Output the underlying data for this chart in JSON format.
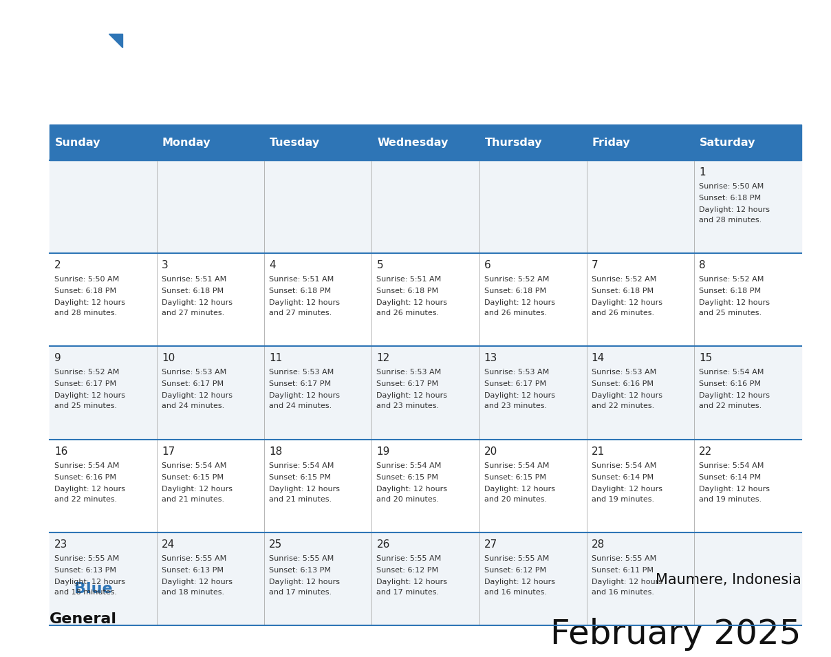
{
  "title": "February 2025",
  "subtitle": "Maumere, Indonesia",
  "header_color": "#2E75B6",
  "header_text_color": "#FFFFFF",
  "day_names": [
    "Sunday",
    "Monday",
    "Tuesday",
    "Wednesday",
    "Thursday",
    "Friday",
    "Saturday"
  ],
  "bg_color": "#FFFFFF",
  "cell_bg_light": "#F0F4F8",
  "cell_bg_white": "#FFFFFF",
  "border_color": "#2E75B6",
  "sep_color": "#AAAAAA",
  "title_color": "#111111",
  "subtitle_color": "#111111",
  "date_color": "#222222",
  "text_color": "#333333",
  "logo_general_color": "#111111",
  "logo_blue_color": "#2E75B6",
  "logo_triangle_color": "#2E75B6",
  "calendar": [
    [
      null,
      null,
      null,
      null,
      null,
      null,
      {
        "day": 1,
        "sunrise": "5:50 AM",
        "sunset": "6:18 PM",
        "daylight": "12 hours and 28 minutes."
      }
    ],
    [
      {
        "day": 2,
        "sunrise": "5:50 AM",
        "sunset": "6:18 PM",
        "daylight": "12 hours and 28 minutes."
      },
      {
        "day": 3,
        "sunrise": "5:51 AM",
        "sunset": "6:18 PM",
        "daylight": "12 hours and 27 minutes."
      },
      {
        "day": 4,
        "sunrise": "5:51 AM",
        "sunset": "6:18 PM",
        "daylight": "12 hours and 27 minutes."
      },
      {
        "day": 5,
        "sunrise": "5:51 AM",
        "sunset": "6:18 PM",
        "daylight": "12 hours and 26 minutes."
      },
      {
        "day": 6,
        "sunrise": "5:52 AM",
        "sunset": "6:18 PM",
        "daylight": "12 hours and 26 minutes."
      },
      {
        "day": 7,
        "sunrise": "5:52 AM",
        "sunset": "6:18 PM",
        "daylight": "12 hours and 26 minutes."
      },
      {
        "day": 8,
        "sunrise": "5:52 AM",
        "sunset": "6:18 PM",
        "daylight": "12 hours and 25 minutes."
      }
    ],
    [
      {
        "day": 9,
        "sunrise": "5:52 AM",
        "sunset": "6:17 PM",
        "daylight": "12 hours and 25 minutes."
      },
      {
        "day": 10,
        "sunrise": "5:53 AM",
        "sunset": "6:17 PM",
        "daylight": "12 hours and 24 minutes."
      },
      {
        "day": 11,
        "sunrise": "5:53 AM",
        "sunset": "6:17 PM",
        "daylight": "12 hours and 24 minutes."
      },
      {
        "day": 12,
        "sunrise": "5:53 AM",
        "sunset": "6:17 PM",
        "daylight": "12 hours and 23 minutes."
      },
      {
        "day": 13,
        "sunrise": "5:53 AM",
        "sunset": "6:17 PM",
        "daylight": "12 hours and 23 minutes."
      },
      {
        "day": 14,
        "sunrise": "5:53 AM",
        "sunset": "6:16 PM",
        "daylight": "12 hours and 22 minutes."
      },
      {
        "day": 15,
        "sunrise": "5:54 AM",
        "sunset": "6:16 PM",
        "daylight": "12 hours and 22 minutes."
      }
    ],
    [
      {
        "day": 16,
        "sunrise": "5:54 AM",
        "sunset": "6:16 PM",
        "daylight": "12 hours and 22 minutes."
      },
      {
        "day": 17,
        "sunrise": "5:54 AM",
        "sunset": "6:15 PM",
        "daylight": "12 hours and 21 minutes."
      },
      {
        "day": 18,
        "sunrise": "5:54 AM",
        "sunset": "6:15 PM",
        "daylight": "12 hours and 21 minutes."
      },
      {
        "day": 19,
        "sunrise": "5:54 AM",
        "sunset": "6:15 PM",
        "daylight": "12 hours and 20 minutes."
      },
      {
        "day": 20,
        "sunrise": "5:54 AM",
        "sunset": "6:15 PM",
        "daylight": "12 hours and 20 minutes."
      },
      {
        "day": 21,
        "sunrise": "5:54 AM",
        "sunset": "6:14 PM",
        "daylight": "12 hours and 19 minutes."
      },
      {
        "day": 22,
        "sunrise": "5:54 AM",
        "sunset": "6:14 PM",
        "daylight": "12 hours and 19 minutes."
      }
    ],
    [
      {
        "day": 23,
        "sunrise": "5:55 AM",
        "sunset": "6:13 PM",
        "daylight": "12 hours and 18 minutes."
      },
      {
        "day": 24,
        "sunrise": "5:55 AM",
        "sunset": "6:13 PM",
        "daylight": "12 hours and 18 minutes."
      },
      {
        "day": 25,
        "sunrise": "5:55 AM",
        "sunset": "6:13 PM",
        "daylight": "12 hours and 17 minutes."
      },
      {
        "day": 26,
        "sunrise": "5:55 AM",
        "sunset": "6:12 PM",
        "daylight": "12 hours and 17 minutes."
      },
      {
        "day": 27,
        "sunrise": "5:55 AM",
        "sunset": "6:12 PM",
        "daylight": "12 hours and 16 minutes."
      },
      {
        "day": 28,
        "sunrise": "5:55 AM",
        "sunset": "6:11 PM",
        "daylight": "12 hours and 16 minutes."
      },
      null
    ]
  ]
}
